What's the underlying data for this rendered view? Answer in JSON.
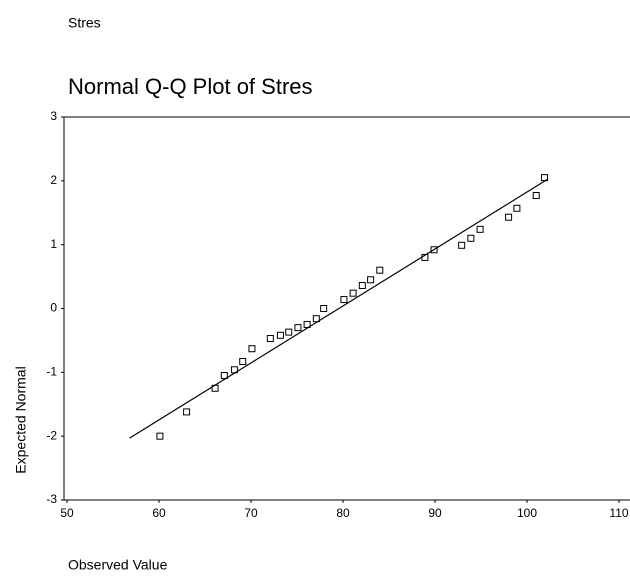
{
  "header": "Stres",
  "chart_data": {
    "type": "scatter",
    "title": "Normal Q-Q Plot of Stres",
    "x_label": "Observed Value",
    "y_label": "Expected Normal",
    "x": [
      60.1,
      63.0,
      66.1,
      67.1,
      68.2,
      69.1,
      70.1,
      72.1,
      73.2,
      74.1,
      75.1,
      76.1,
      77.1,
      77.9,
      80.1,
      81.1,
      82.1,
      83.0,
      84.0,
      88.9,
      89.9,
      92.9,
      93.9,
      94.9,
      98.0,
      98.9,
      101.0,
      101.9
    ],
    "values": [
      -2.0,
      -1.62,
      -1.25,
      -1.05,
      -0.96,
      -0.83,
      -0.63,
      -0.47,
      -0.42,
      -0.37,
      -0.3,
      -0.25,
      -0.16,
      0.0,
      0.14,
      0.24,
      0.36,
      0.45,
      0.6,
      0.8,
      0.92,
      0.99,
      1.1,
      1.24,
      1.43,
      1.57,
      1.77,
      2.05
    ],
    "reference_line": {
      "x": [
        56.8,
        102.3
      ],
      "values": [
        -2.03,
        2.03
      ]
    },
    "xlim": [
      50,
      110
    ],
    "xticks": [
      50,
      60,
      70,
      80,
      90,
      100,
      110
    ],
    "ylim": [
      -3,
      3
    ],
    "yticks": [
      -3,
      -2,
      -1,
      0,
      1,
      2,
      3
    ],
    "marker": "hollow-square",
    "color": "#000000"
  }
}
